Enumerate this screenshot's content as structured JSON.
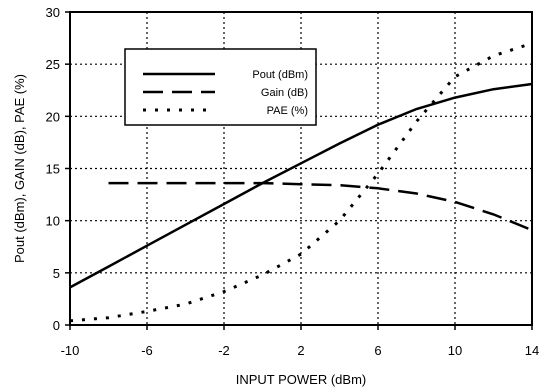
{
  "chart_data": {
    "type": "line",
    "xlabel": "INPUT POWER (dBm)",
    "ylabel": "Pout (dBm), GAIN (dB), PAE (%)",
    "xlim": [
      -10,
      14
    ],
    "ylim": [
      0,
      30
    ],
    "xticks": [
      -10,
      -6,
      -2,
      2,
      6,
      10,
      14
    ],
    "yticks": [
      0,
      5,
      10,
      15,
      20,
      25,
      30
    ],
    "grid": true,
    "legend_position": "upper-left-center",
    "series": [
      {
        "name": "Pout (dBm)",
        "style": "solid",
        "x": [
          -10,
          -8,
          -6,
          -4,
          -2,
          0,
          2,
          4,
          6,
          8,
          10,
          12,
          14
        ],
        "y": [
          3.6,
          5.6,
          7.6,
          9.6,
          11.6,
          13.6,
          15.5,
          17.4,
          19.2,
          20.7,
          21.8,
          22.6,
          23.1
        ]
      },
      {
        "name": "Gain (dB)",
        "style": "dashed",
        "x": [
          -8,
          -6,
          -4,
          -2,
          0,
          2,
          4,
          6,
          8,
          10,
          12,
          14
        ],
        "y": [
          13.6,
          13.6,
          13.6,
          13.6,
          13.6,
          13.5,
          13.4,
          13.1,
          12.6,
          11.8,
          10.6,
          9.1
        ]
      },
      {
        "name": "PAE (%)",
        "style": "dotted",
        "x": [
          -10,
          -8,
          -6,
          -4,
          -2,
          0,
          2,
          4,
          6,
          8,
          10,
          12,
          14
        ],
        "y": [
          0.4,
          0.7,
          1.3,
          2.0,
          3.2,
          4.8,
          6.8,
          10.0,
          14.5,
          19.5,
          23.8,
          25.8,
          27.0
        ]
      }
    ]
  }
}
